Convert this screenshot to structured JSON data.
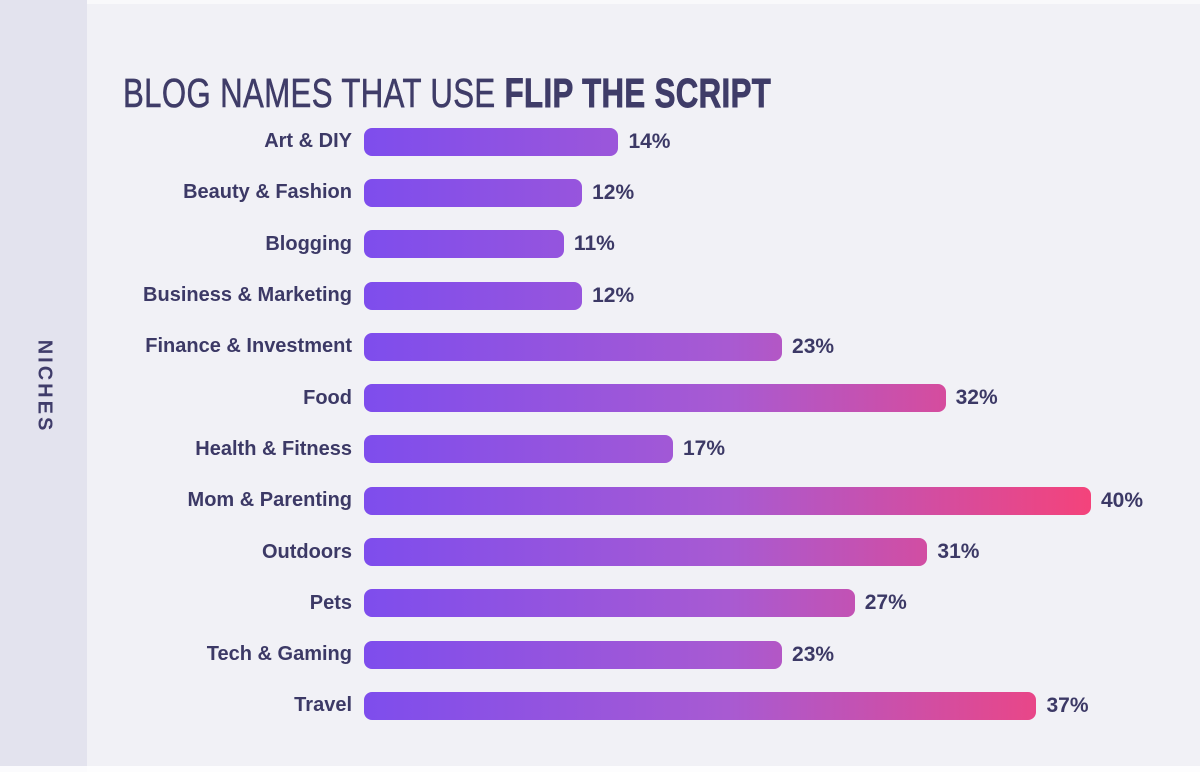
{
  "title": {
    "regular": "BLOG NAMES THAT USE ",
    "bold": "FLIP THE SCRIPT"
  },
  "sidebar": {
    "axis_label": "NICHES"
  },
  "chart_data": {
    "type": "bar",
    "orientation": "horizontal",
    "title": "BLOG NAMES THAT USE FLIP THE SCRIPT",
    "ylabel": "NICHES",
    "categories": [
      "Art & DIY",
      "Beauty & Fashion",
      "Blogging",
      "Business & Marketing",
      "Finance & Investment",
      "Food",
      "Health & Fitness",
      "Mom & Parenting",
      "Outdoors",
      "Pets",
      "Tech & Gaming",
      "Travel"
    ],
    "values": [
      14,
      12,
      11,
      12,
      23,
      32,
      17,
      40,
      31,
      27,
      23,
      37
    ],
    "value_suffix": "%",
    "xlim": [
      0,
      40
    ],
    "grid": false,
    "legend": false,
    "colors": {
      "bar_gradient_start": "#7e4ded",
      "bar_gradient_mid": "#a85ad2",
      "bar_gradient_end": "#f4437b",
      "background": "#f1f1f6",
      "sidebar_background": "#e3e3ee",
      "text": "#3c3966"
    }
  }
}
